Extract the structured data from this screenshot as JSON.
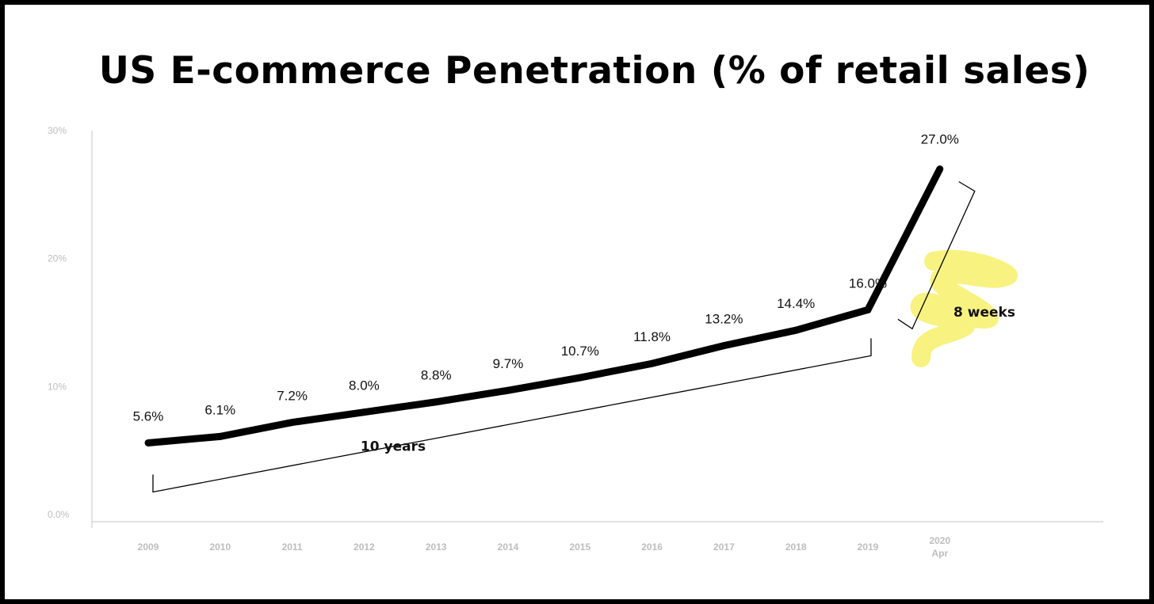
{
  "chart_data": {
    "type": "line",
    "title": "US E-commerce Penetration (% of retail sales)",
    "xlabel": "",
    "ylabel": "",
    "categories": [
      "2009",
      "2010",
      "2011",
      "2012",
      "2013",
      "2014",
      "2015",
      "2016",
      "2017",
      "2018",
      "2019",
      "2020"
    ],
    "category_sublabels": [
      "",
      "",
      "",
      "",
      "",
      "",
      "",
      "",
      "",
      "",
      "",
      "Apr"
    ],
    "series": [
      {
        "values": [
          5.6,
          6.1,
          7.2,
          8.0,
          8.8,
          9.7,
          10.7,
          11.8,
          13.2,
          14.4,
          16.0,
          27.0
        ],
        "data_labels": [
          "5.6%",
          "6.1%",
          "7.2%",
          "8.0%",
          "8.8%",
          "9.7%",
          "10.7%",
          "11.8%",
          "13.2%",
          "14.4%",
          "16.0%",
          "27.0%"
        ]
      }
    ],
    "ylim": [
      0,
      30
    ],
    "yticks": [
      0,
      10,
      20,
      30
    ],
    "ytick_labels": [
      "0.0%",
      "10%",
      "20%",
      "30%"
    ],
    "grid": false,
    "annotations": [
      {
        "text": "10 years",
        "from": "2009",
        "to": "2019"
      },
      {
        "text": "8 weeks",
        "from": "2019",
        "to": "2020"
      }
    ],
    "highlight_color": "#f7f06b",
    "line_color": "#000000"
  }
}
